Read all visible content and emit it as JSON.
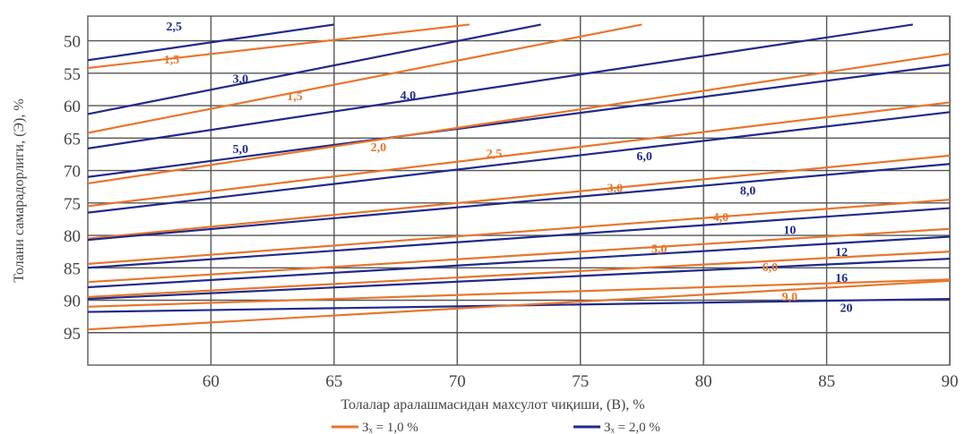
{
  "chart_data": {
    "type": "line",
    "xlabel": "Толалар аралашмасидан махсулот чиқиши, (В),  %",
    "ylabel": "Толани самарадорлиги, (Э), %",
    "xlim": [
      55,
      90
    ],
    "ylim": [
      50,
      95
    ],
    "y_inverted": true,
    "x_ticks": [
      "60",
      "65",
      "70",
      "75",
      "80",
      "85",
      "90"
    ],
    "y_ticks": [
      "50",
      "55",
      "60",
      "65",
      "70",
      "75",
      "80",
      "85",
      "90",
      "95"
    ],
    "grid": true,
    "legend": {
      "position": "bottom",
      "items": [
        {
          "label": "Зₓ = 1,0 %",
          "color": "#e8762d"
        },
        {
          "label": "Зₓ = 2,0 %",
          "color": "#1f2a8a"
        }
      ]
    },
    "series": [
      {
        "name": "2,5",
        "group": "Зₓ = 2,0 %",
        "color": "#1f2a8a",
        "x": [
          55,
          65
        ],
        "y": [
          53.0,
          47.5
        ],
        "label_at": [
          58.5,
          48.4
        ]
      },
      {
        "name": "1,5",
        "group": "Зₓ = 1,0 %",
        "color": "#e8762d",
        "x": [
          55,
          70.5
        ],
        "y": [
          54.2,
          47.5
        ],
        "label_at": [
          58.4,
          53.5
        ]
      },
      {
        "name": "3,0",
        "group": "Зₓ = 2,0 %",
        "color": "#1f2a8a",
        "x": [
          55,
          73.4
        ],
        "y": [
          61.3,
          47.5
        ],
        "label_at": [
          61.2,
          56.5
        ]
      },
      {
        "name": "1,5",
        "group": "Зₓ = 1,0 %",
        "color": "#e8762d",
        "x": [
          55,
          77.5
        ],
        "y": [
          64.2,
          47.5
        ],
        "label_at": [
          63.4,
          59.2
        ]
      },
      {
        "name": "4,0",
        "group": "Зₓ = 2,0 %",
        "color": "#1f2a8a",
        "x": [
          55,
          88.5
        ],
        "y": [
          66.6,
          47.5
        ],
        "label_at": [
          68,
          59.0
        ]
      },
      {
        "name": "5,0",
        "group": "Зₓ = 2,0 %",
        "color": "#1f2a8a",
        "x": [
          55,
          90
        ],
        "y": [
          71.0,
          53.7
        ],
        "label_at": [
          61.2,
          67.3
        ]
      },
      {
        "name": "2,0",
        "group": "Зₓ = 1,0 %",
        "color": "#e8762d",
        "x": [
          55,
          90
        ],
        "y": [
          72.0,
          52.0
        ],
        "label_at": [
          66.8,
          67.0
        ]
      },
      {
        "name": "2,5",
        "group": "Зₓ = 1,0 %",
        "color": "#e8762d",
        "x": [
          55,
          90
        ],
        "y": [
          75.5,
          59.5
        ],
        "label_at": [
          71.5,
          68.0
        ]
      },
      {
        "name": "6,0",
        "group": "Зₓ = 2,0 %",
        "color": "#1f2a8a",
        "x": [
          55,
          90
        ],
        "y": [
          76.5,
          61.0
        ],
        "label_at": [
          77.6,
          68.4
        ]
      },
      {
        "name": "3,0",
        "group": "Зₓ = 1,0 %",
        "color": "#e8762d",
        "x": [
          55,
          90
        ],
        "y": [
          80.5,
          67.7
        ],
        "label_at": [
          76.4,
          73.3
        ]
      },
      {
        "name": "8,0",
        "group": "Зₓ = 2,0 %",
        "color": "#1f2a8a",
        "x": [
          55,
          90
        ],
        "y": [
          80.7,
          69.0
        ],
        "label_at": [
          81.8,
          73.7
        ]
      },
      {
        "name": "4,0",
        "group": "Зₓ = 1,0 %",
        "color": "#e8762d",
        "x": [
          55,
          90
        ],
        "y": [
          84.4,
          74.5
        ],
        "label_at": [
          80.7,
          77.8
        ]
      },
      {
        "name": "10",
        "group": "Зₓ = 2,0 %",
        "color": "#1f2a8a",
        "x": [
          55,
          90
        ],
        "y": [
          85.0,
          75.8
        ],
        "label_at": [
          83.5,
          79.8
        ]
      },
      {
        "name": "5,0",
        "group": "Зₓ = 1,0 %",
        "color": "#e8762d",
        "x": [
          55,
          90
        ],
        "y": [
          87.2,
          79.0
        ],
        "label_at": [
          78.2,
          82.7
        ]
      },
      {
        "name": "12",
        "group": "Зₓ = 2,0 %",
        "color": "#1f2a8a",
        "x": [
          55,
          90
        ],
        "y": [
          88.0,
          80.2
        ],
        "label_at": [
          85.6,
          83.2
        ]
      },
      {
        "name": "6,0",
        "group": "Зₓ = 1,0 %",
        "color": "#e8762d",
        "x": [
          55,
          90
        ],
        "y": [
          89.5,
          82.5
        ],
        "label_at": [
          82.7,
          85.5
        ]
      },
      {
        "name": "16",
        "group": "Зₓ = 2,0 %",
        "color": "#1f2a8a",
        "x": [
          55,
          90
        ],
        "y": [
          89.8,
          83.6
        ],
        "label_at": [
          85.6,
          87.2
        ]
      },
      {
        "name": "9,0",
        "group": "Зₓ = 1,0 %",
        "color": "#e8762d",
        "x": [
          55,
          90
        ],
        "y": [
          91.0,
          86.8
        ],
        "label_at": [
          83.5,
          90.1
        ]
      },
      {
        "name": "20",
        "group": "Зₓ = 2,0 %",
        "color": "#1f2a8a",
        "x": [
          55,
          90
        ],
        "y": [
          91.8,
          89.8
        ],
        "label_at": [
          85.8,
          91.8
        ]
      },
      {
        "name": "",
        "group": "Зₓ = 1,0 %",
        "color": "#e8762d",
        "x": [
          55,
          90
        ],
        "y": [
          94.5,
          87.0
        ]
      }
    ]
  }
}
